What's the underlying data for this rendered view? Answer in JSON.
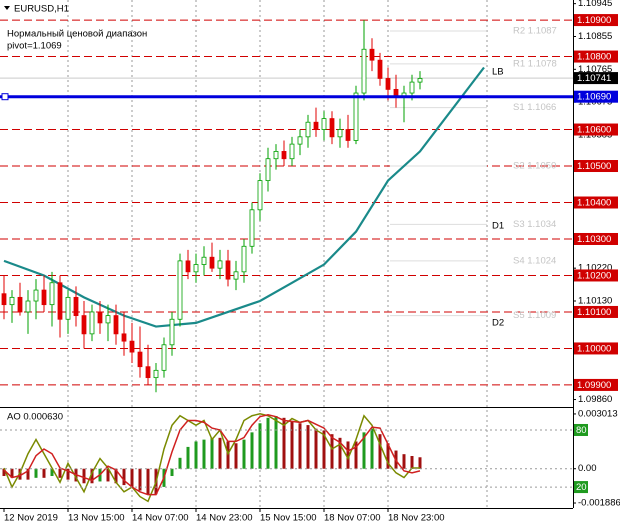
{
  "chart_data": [
    {
      "type": "candlestick",
      "title": "EURUSD,H1",
      "subtitle": "Нормальный ценовой диапазон",
      "annotation": "pivot=1.1069",
      "xlim": [
        -0.5,
        71.125
      ],
      "xticks": [
        {
          "value": 0,
          "label": "12 Nov 2019"
        },
        {
          "value": 8,
          "label": "13 Nov 15:00"
        },
        {
          "value": 16,
          "label": "14 Nov 07:00"
        },
        {
          "value": 24,
          "label": "14 Nov 23:00"
        },
        {
          "value": 32,
          "label": "15 Nov 15:00"
        },
        {
          "value": 40,
          "label": "18 Nov 07:00"
        },
        {
          "value": 48,
          "label": "18 Nov 23:00"
        }
      ],
      "ylim": [
        1.09845,
        1.10955
      ],
      "yticks": [
        1.10945,
        1.10855,
        1.10765,
        1.10675,
        1.10585,
        {
          "value": 1.1022,
          "label": "1.10220"
        },
        {
          "value": 1.1013,
          "label": "1.10130"
        },
        {
          "value": 1.0986,
          "label": "1.09860"
        }
      ],
      "levels": [
        {
          "value": 1.109,
          "label": "1.10900"
        },
        {
          "value": 1.108,
          "label": "1.10800"
        },
        {
          "value": 1.106,
          "label": "1.10600"
        },
        {
          "value": 1.105,
          "label": "1.10500"
        },
        {
          "value": 1.104,
          "label": "1.10400"
        },
        {
          "value": 1.103,
          "label": "1.10300"
        },
        {
          "value": 1.102,
          "label": "1.10200"
        },
        {
          "value": 1.101,
          "label": "1.10100"
        },
        {
          "value": 1.1,
          "label": "1.10000"
        },
        {
          "value": 1.099,
          "label": "1.09900"
        }
      ],
      "level_color": "#d00000",
      "pivot": {
        "value": 1.1069,
        "label": "1.10690"
      },
      "pivot_color": "#0000dd",
      "current_price": 1.10741,
      "pivot_levels": [
        {
          "value": 1.1087,
          "label": "R2 1.1087"
        },
        {
          "value": 1.1078,
          "label": "R1 1.1078"
        },
        {
          "value": 1.1066,
          "label": "S1 1.1066"
        },
        {
          "value": 1.105,
          "label": "S2 1.1050"
        },
        {
          "value": 1.1034,
          "label": "S3 1.1034"
        },
        {
          "value": 1.1024,
          "label": "S4 1.1024"
        },
        {
          "value": 1.1009,
          "label": "S5 1.1009"
        }
      ],
      "annotations": [
        "LB",
        "D1",
        "D2"
      ],
      "up_color": "#00a000",
      "down_color": "#e00000",
      "open": [
        1.1015,
        1.1012,
        1.1014,
        1.101,
        1.1013,
        1.1016,
        1.1012,
        1.1018,
        1.1008,
        1.1014,
        1.1009,
        1.1004,
        1.101,
        1.1007,
        1.1009,
        1.1004,
        1.1002,
        1.0999,
        1.0995,
        1.0992,
        1.0994,
        1.1001,
        1.1008,
        1.1024,
        1.1021,
        1.1023,
        1.1025,
        1.1022,
        1.1024,
        1.1019,
        1.1021,
        1.1028,
        1.1038,
        1.1046,
        1.1052,
        1.1054,
        1.1052,
        1.1056,
        1.1058,
        1.1062,
        1.106,
        1.1063,
        1.1058,
        1.106,
        1.1057,
        1.107,
        1.1082,
        1.1079,
        1.1074,
        1.1071,
        1.1069,
        1.107,
        1.1073
      ],
      "high": [
        1.102,
        1.1016,
        1.1018,
        1.1016,
        1.1019,
        1.102,
        1.1021,
        1.102,
        1.1016,
        1.1017,
        1.1013,
        1.1012,
        1.1013,
        1.1012,
        1.1012,
        1.101,
        1.1007,
        1.1006,
        1.1001,
        1.0996,
        1.1003,
        1.101,
        1.1026,
        1.1027,
        1.1026,
        1.1028,
        1.1029,
        1.1027,
        1.1027,
        1.1024,
        1.103,
        1.104,
        1.1048,
        1.1055,
        1.1056,
        1.1057,
        1.1058,
        1.106,
        1.1064,
        1.1066,
        1.1065,
        1.1065,
        1.1063,
        1.1064,
        1.1072,
        1.109,
        1.1085,
        1.1081,
        1.1077,
        1.1075,
        1.1072,
        1.1075,
        1.1076
      ],
      "low": [
        1.1008,
        1.1007,
        1.1009,
        1.1004,
        1.1008,
        1.101,
        1.1006,
        1.1003,
        1.1004,
        1.1006,
        1.1,
        1.1002,
        1.1004,
        1.1002,
        1.1001,
        1.0998,
        1.0996,
        1.0992,
        1.099,
        1.0988,
        1.0992,
        1.0998,
        1.1006,
        1.1019,
        1.1018,
        1.102,
        1.1021,
        1.1019,
        1.1017,
        1.1016,
        1.1018,
        1.1026,
        1.1035,
        1.1043,
        1.1049,
        1.105,
        1.105,
        1.1053,
        1.1055,
        1.1058,
        1.1057,
        1.1056,
        1.1055,
        1.1055,
        1.1056,
        1.1068,
        1.1076,
        1.1072,
        1.1068,
        1.1066,
        1.1062,
        1.1068,
        1.1071
      ],
      "close": [
        1.1012,
        1.1014,
        1.101,
        1.1013,
        1.1016,
        1.1012,
        1.1018,
        1.1008,
        1.1014,
        1.1009,
        1.1004,
        1.101,
        1.1007,
        1.1009,
        1.1004,
        1.1002,
        1.0999,
        1.0995,
        1.0992,
        1.0994,
        1.1001,
        1.1008,
        1.1024,
        1.1021,
        1.1023,
        1.1025,
        1.1022,
        1.1024,
        1.1019,
        1.1021,
        1.1028,
        1.1038,
        1.1046,
        1.1052,
        1.1054,
        1.1052,
        1.1056,
        1.1058,
        1.1062,
        1.106,
        1.1063,
        1.1058,
        1.106,
        1.1057,
        1.107,
        1.1082,
        1.1079,
        1.1074,
        1.1071,
        1.1069,
        1.107,
        1.1073,
        1.1074
      ],
      "ma": {
        "color": "#1a8a8a",
        "x": [
          0,
          5,
          10,
          15,
          19,
          24,
          28,
          32,
          36,
          40,
          44,
          48,
          52,
          60
        ],
        "values": [
          1.1024,
          1.102,
          1.1014,
          1.1009,
          1.1006,
          1.1007,
          1.101,
          1.1013,
          1.1018,
          1.1023,
          1.1032,
          1.1046,
          1.1054,
          1.1077
        ]
      }
    },
    {
      "type": "bar",
      "title": "AO 0.000630",
      "ylim": [
        -0.00216,
        0.00323
      ],
      "yticks": [
        0.003013,
        {
          "value": 0,
          "label": "0.00"
        },
        -0.001886
      ],
      "y2lim": [
        -2,
        101
      ],
      "y2ticks": [
        80,
        20
      ],
      "y2tick_color": "#1f9a1f",
      "up_color": "#1f9a1f",
      "down_color": "#a01010",
      "values": [
        -0.0004,
        -0.0005,
        -0.0006,
        -0.0006,
        -0.0005,
        -0.0005,
        -0.0004,
        -0.0005,
        -0.0006,
        -0.0007,
        -0.0008,
        -0.0008,
        -0.0007,
        -0.0007,
        -0.0008,
        -0.0009,
        -0.001,
        -0.0012,
        -0.0014,
        -0.0014,
        -0.001,
        -0.0004,
        0.0006,
        0.0012,
        0.0015,
        0.0016,
        0.0017,
        0.0017,
        0.0015,
        0.0014,
        0.0016,
        0.002,
        0.0025,
        0.0028,
        0.0029,
        0.0028,
        0.0026,
        0.0025,
        0.0024,
        0.0022,
        0.0021,
        0.0019,
        0.0017,
        0.0015,
        0.0015,
        0.002,
        0.0022,
        0.0019,
        0.0014,
        0.001,
        0.0008,
        0.0007,
        0.00063
      ],
      "lines": [
        {
          "color": "#7a8a00",
          "axis": "y2",
          "values": [
            40,
            20,
            35,
            55,
            70,
            55,
            40,
            25,
            45,
            30,
            15,
            35,
            50,
            40,
            25,
            15,
            20,
            10,
            5,
            25,
            60,
            85,
            95,
            90,
            85,
            90,
            70,
            80,
            55,
            70,
            90,
            95,
            97,
            95,
            90,
            85,
            92,
            88,
            90,
            80,
            75,
            60,
            65,
            50,
            70,
            95,
            85,
            65,
            45,
            35,
            30,
            40,
            40
          ]
        },
        {
          "color": "#d02020",
          "axis": "y2",
          "values": [
            38,
            30,
            32,
            37,
            53,
            60,
            55,
            40,
            37,
            33,
            30,
            27,
            33,
            42,
            38,
            27,
            20,
            15,
            12,
            12,
            30,
            57,
            80,
            90,
            90,
            88,
            82,
            80,
            68,
            68,
            72,
            85,
            94,
            96,
            94,
            90,
            89,
            88,
            90,
            86,
            82,
            72,
            67,
            58,
            62,
            72,
            83,
            82,
            65,
            48,
            37,
            35,
            37
          ]
        }
      ]
    }
  ]
}
